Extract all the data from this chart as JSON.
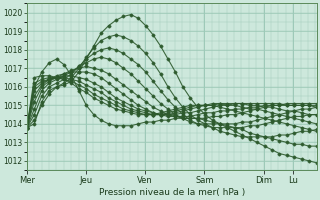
{
  "title": "Pression niveau de la mer( hPa )",
  "bg_color": "#cde8dc",
  "grid_color": "#9dc9b8",
  "line_color": "#2d5a2d",
  "ylim": [
    1011.5,
    1020.5
  ],
  "yticks": [
    1012,
    1013,
    1014,
    1015,
    1016,
    1017,
    1018,
    1019,
    1020
  ],
  "day_labels": [
    "Mer",
    "Jeu",
    "Ven",
    "Sam",
    "Dim",
    "Lu"
  ],
  "day_positions": [
    0,
    48,
    96,
    144,
    192,
    216
  ],
  "total_hours": 235,
  "lines": [
    [
      1013.8,
      1014.0,
      1015.2,
      1015.8,
      1016.0,
      1016.1,
      1016.3,
      1016.8,
      1017.5,
      1018.2,
      1018.9,
      1019.3,
      1019.6,
      1019.8,
      1019.9,
      1019.7,
      1019.3,
      1018.8,
      1018.2,
      1017.5,
      1016.8,
      1016.0,
      1015.4,
      1014.9,
      1014.5,
      1014.2,
      1014.0,
      1013.8,
      1013.6,
      1013.4,
      1013.2,
      1013.0,
      1012.8,
      1012.6,
      1012.4,
      1012.3,
      1012.2,
      1012.1,
      1012.0,
      1011.9
    ],
    [
      1013.8,
      1014.2,
      1015.0,
      1015.6,
      1016.0,
      1016.2,
      1016.5,
      1017.0,
      1017.6,
      1018.1,
      1018.5,
      1018.7,
      1018.8,
      1018.7,
      1018.5,
      1018.2,
      1017.8,
      1017.3,
      1016.7,
      1016.0,
      1015.4,
      1014.9,
      1014.5,
      1014.2,
      1014.0,
      1013.8,
      1013.6,
      1013.5,
      1013.4,
      1013.3,
      1013.3,
      1013.3,
      1013.3,
      1013.3,
      1013.4,
      1013.4,
      1013.5,
      1013.6,
      1013.6,
      1013.7
    ],
    [
      1013.8,
      1014.5,
      1015.5,
      1016.0,
      1016.2,
      1016.4,
      1016.7,
      1017.1,
      1017.5,
      1017.8,
      1018.0,
      1018.1,
      1018.0,
      1017.8,
      1017.5,
      1017.2,
      1016.8,
      1016.3,
      1015.8,
      1015.3,
      1014.9,
      1014.5,
      1014.2,
      1014.0,
      1013.9,
      1013.8,
      1013.8,
      1013.8,
      1013.8,
      1013.8,
      1013.9,
      1013.9,
      1014.0,
      1014.1,
      1014.2,
      1014.3,
      1014.4,
      1014.4,
      1014.5,
      1014.5
    ],
    [
      1013.8,
      1014.8,
      1015.8,
      1016.2,
      1016.4,
      1016.6,
      1016.8,
      1017.1,
      1017.3,
      1017.5,
      1017.6,
      1017.5,
      1017.3,
      1017.0,
      1016.7,
      1016.3,
      1015.9,
      1015.5,
      1015.1,
      1014.8,
      1014.5,
      1014.3,
      1014.1,
      1014.0,
      1014.0,
      1014.0,
      1014.0,
      1014.0,
      1014.0,
      1014.1,
      1014.1,
      1014.2,
      1014.3,
      1014.4,
      1014.5,
      1014.6,
      1014.7,
      1014.8,
      1014.8,
      1014.9
    ],
    [
      1013.8,
      1015.2,
      1016.0,
      1016.3,
      1016.5,
      1016.7,
      1016.9,
      1017.0,
      1017.1,
      1017.0,
      1016.9,
      1016.7,
      1016.4,
      1016.1,
      1015.8,
      1015.5,
      1015.2,
      1014.9,
      1014.7,
      1014.5,
      1014.4,
      1014.3,
      1014.3,
      1014.3,
      1014.3,
      1014.4,
      1014.4,
      1014.5,
      1014.5,
      1014.6,
      1014.7,
      1014.8,
      1014.9,
      1015.0,
      1015.0,
      1015.1,
      1015.1,
      1015.1,
      1015.1,
      1015.1
    ],
    [
      1013.8,
      1015.5,
      1016.1,
      1016.4,
      1016.6,
      1016.7,
      1016.8,
      1016.8,
      1016.8,
      1016.7,
      1016.5,
      1016.2,
      1015.9,
      1015.6,
      1015.3,
      1015.0,
      1014.8,
      1014.6,
      1014.5,
      1014.4,
      1014.4,
      1014.4,
      1014.4,
      1014.5,
      1014.6,
      1014.6,
      1014.7,
      1014.7,
      1014.8,
      1014.8,
      1014.9,
      1014.9,
      1015.0,
      1015.0,
      1015.0,
      1015.0,
      1015.0,
      1015.0,
      1015.0,
      1015.0
    ],
    [
      1013.8,
      1015.8,
      1016.2,
      1016.4,
      1016.5,
      1016.6,
      1016.6,
      1016.5,
      1016.4,
      1016.2,
      1016.0,
      1015.7,
      1015.4,
      1015.2,
      1015.0,
      1014.8,
      1014.7,
      1014.6,
      1014.5,
      1014.5,
      1014.5,
      1014.6,
      1014.6,
      1014.7,
      1014.8,
      1014.9,
      1015.0,
      1015.0,
      1015.1,
      1015.1,
      1015.1,
      1015.1,
      1015.1,
      1015.1,
      1015.1,
      1015.0,
      1015.0,
      1015.0,
      1015.0,
      1014.9
    ],
    [
      1013.8,
      1016.0,
      1016.3,
      1016.4,
      1016.5,
      1016.5,
      1016.4,
      1016.3,
      1016.1,
      1015.9,
      1015.7,
      1015.4,
      1015.2,
      1015.0,
      1014.8,
      1014.7,
      1014.6,
      1014.5,
      1014.5,
      1014.5,
      1014.6,
      1014.7,
      1014.8,
      1014.9,
      1015.0,
      1015.0,
      1015.1,
      1015.1,
      1015.1,
      1015.1,
      1015.0,
      1015.0,
      1014.9,
      1014.9,
      1014.8,
      1014.7,
      1014.7,
      1014.6,
      1014.5,
      1014.5
    ],
    [
      1013.8,
      1016.2,
      1016.4,
      1016.5,
      1016.5,
      1016.4,
      1016.3,
      1016.1,
      1015.9,
      1015.6,
      1015.4,
      1015.2,
      1015.0,
      1014.8,
      1014.7,
      1014.6,
      1014.5,
      1014.5,
      1014.5,
      1014.6,
      1014.7,
      1014.8,
      1014.9,
      1015.0,
      1015.0,
      1015.1,
      1015.1,
      1015.0,
      1015.0,
      1014.9,
      1014.8,
      1014.8,
      1014.7,
      1014.6,
      1014.5,
      1014.4,
      1014.3,
      1014.2,
      1014.1,
      1014.0
    ],
    [
      1013.8,
      1016.5,
      1016.6,
      1016.6,
      1016.5,
      1016.4,
      1016.2,
      1015.9,
      1015.7,
      1015.4,
      1015.2,
      1015.0,
      1014.8,
      1014.7,
      1014.6,
      1014.5,
      1014.5,
      1014.5,
      1014.6,
      1014.7,
      1014.8,
      1014.9,
      1015.0,
      1015.0,
      1015.0,
      1015.0,
      1014.9,
      1014.8,
      1014.7,
      1014.6,
      1014.5,
      1014.4,
      1014.3,
      1014.2,
      1014.1,
      1014.0,
      1013.9,
      1013.8,
      1013.7,
      1013.6
    ],
    [
      1013.8,
      1016.0,
      1016.8,
      1017.3,
      1017.5,
      1017.2,
      1016.6,
      1015.8,
      1015.0,
      1014.5,
      1014.2,
      1014.0,
      1013.9,
      1013.9,
      1013.9,
      1014.0,
      1014.1,
      1014.1,
      1014.2,
      1014.2,
      1014.3,
      1014.3,
      1014.3,
      1014.3,
      1014.2,
      1014.1,
      1014.0,
      1013.9,
      1013.8,
      1013.7,
      1013.5,
      1013.4,
      1013.3,
      1013.2,
      1013.1,
      1013.0,
      1012.9,
      1012.9,
      1012.8,
      1012.8
    ]
  ]
}
